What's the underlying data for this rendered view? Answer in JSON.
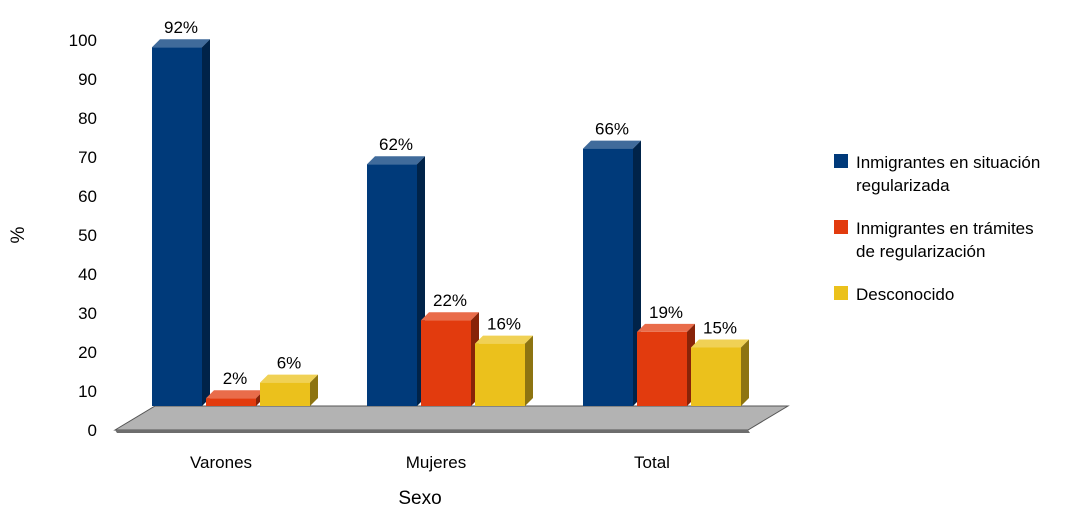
{
  "chart_data": {
    "type": "bar",
    "categories": [
      "Varones",
      "Mujeres",
      "Total"
    ],
    "series": [
      {
        "name": "Inmigrantes en situación regularizada",
        "legend_lines": [
          "Inmigrantes en situación",
          "regularizada"
        ],
        "color": "#003a7a",
        "values": [
          92,
          62,
          66
        ],
        "labels": [
          "92%",
          "62%",
          "66%"
        ]
      },
      {
        "name": "Inmigrantes en trámites de regularización",
        "legend_lines": [
          "Inmigrantes en trámites",
          "de regularización"
        ],
        "color": "#e23b0e",
        "values": [
          2,
          22,
          19
        ],
        "labels": [
          "2%",
          "22%",
          "19%"
        ]
      },
      {
        "name": "Desconocido",
        "legend_lines": [
          "Desconocido"
        ],
        "color": "#ebc11c",
        "values": [
          6,
          16,
          15
        ],
        "labels": [
          "6%",
          "16%",
          "15%"
        ]
      }
    ],
    "yticks": [
      "0",
      "10",
      "20",
      "30",
      "40",
      "50",
      "60",
      "70",
      "80",
      "90",
      "100"
    ],
    "ylim": [
      0,
      100
    ],
    "ylabel": "%",
    "xlabel": "Sexo",
    "legend_position": "right",
    "floor_color": "#b3b3b3",
    "grid": false
  }
}
